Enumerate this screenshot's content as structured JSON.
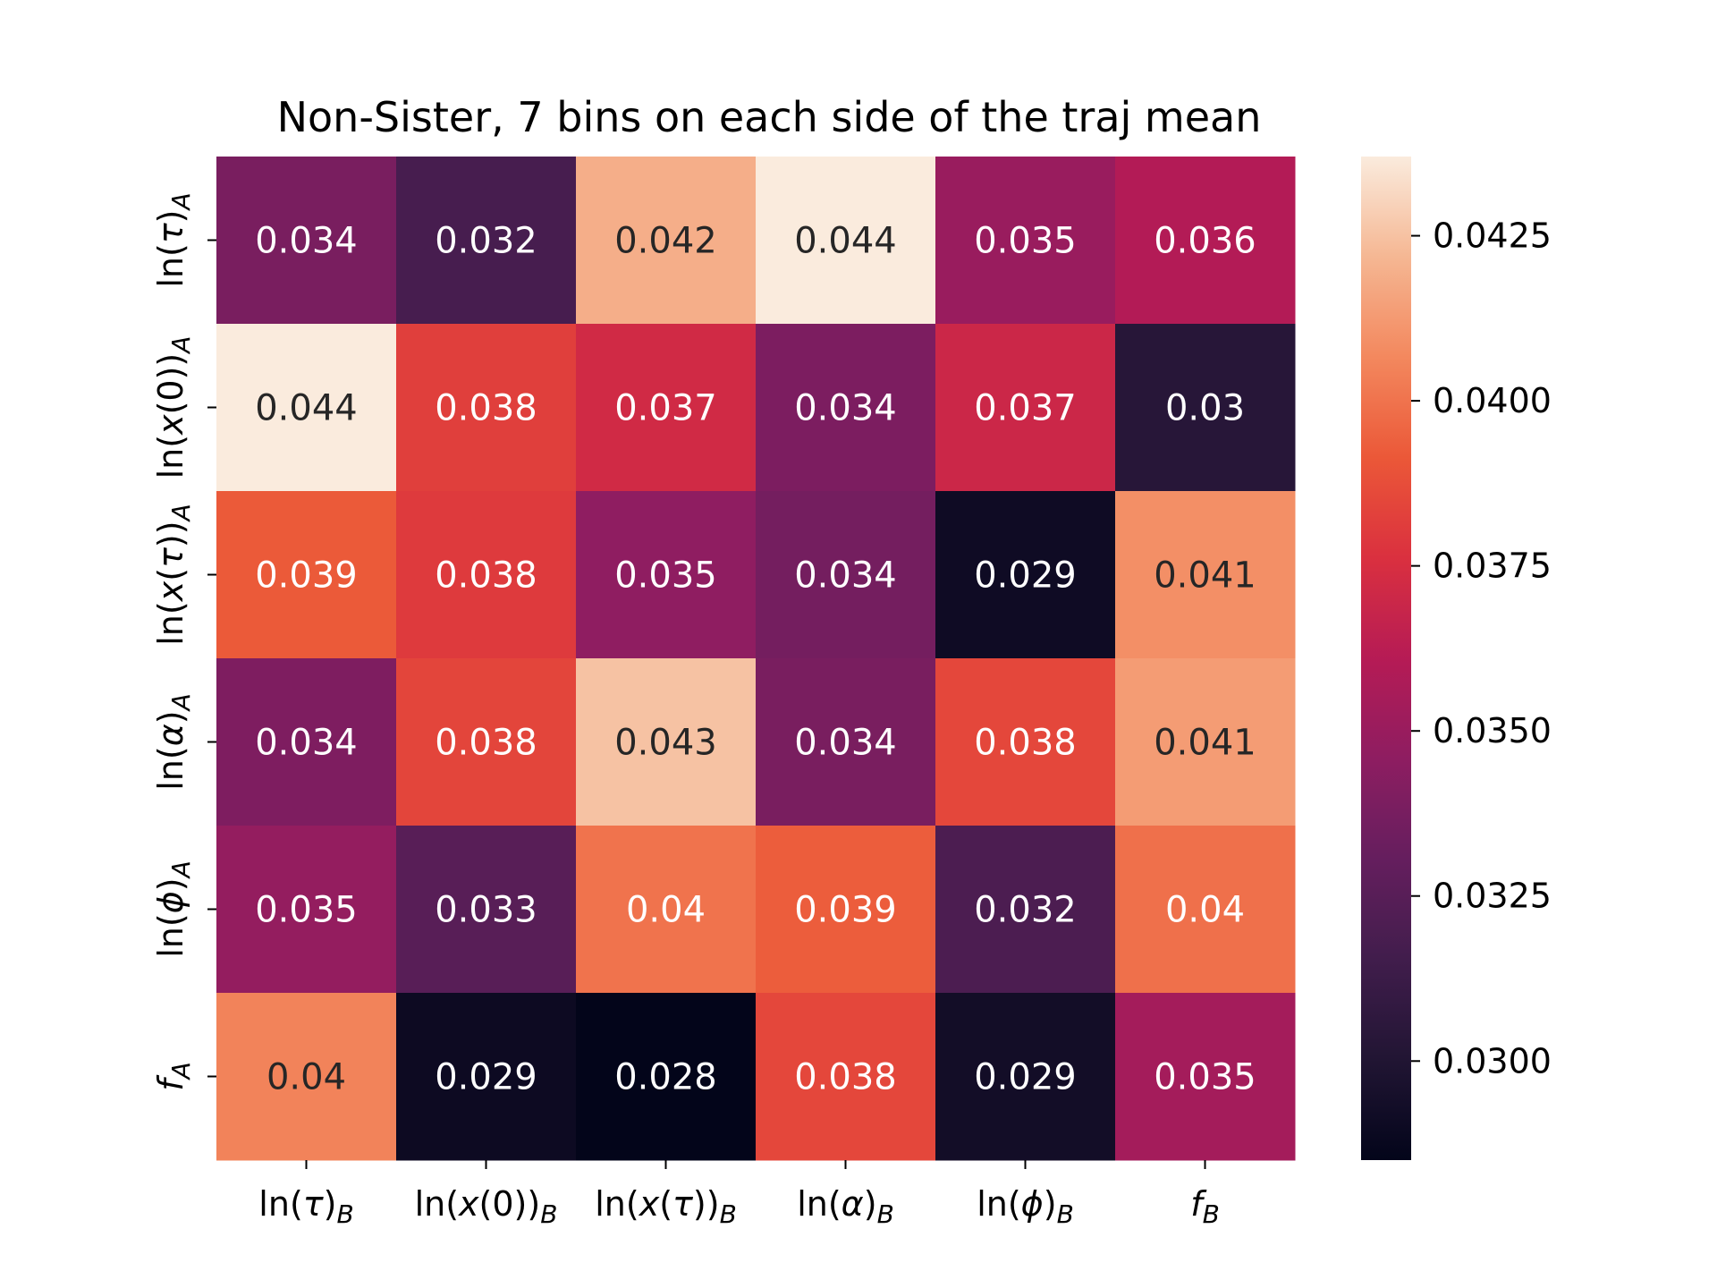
{
  "chart_data": {
    "type": "heatmap",
    "title": "Non-Sister, 7 bins on each side of the traj mean",
    "x_labels": [
      {
        "base": "ln(",
        "var": "τ",
        "close": ")",
        "sub": "B"
      },
      {
        "base": "ln(",
        "var": "x",
        "mid": "(0))",
        "sub": "B"
      },
      {
        "base": "ln(",
        "var": "x",
        "mid": "(",
        "var2": "τ",
        "close": "))",
        "sub": "B"
      },
      {
        "base": "ln(",
        "var": "α",
        "close": ")",
        "sub": "B"
      },
      {
        "base": "ln(",
        "var": "ϕ",
        "close": ")",
        "sub": "B"
      },
      {
        "base": "",
        "var": "f",
        "close": "",
        "sub": "B"
      }
    ],
    "y_labels": [
      {
        "base": "ln(",
        "var": "τ",
        "close": ")",
        "sub": "A"
      },
      {
        "base": "ln(",
        "var": "x",
        "mid": "(0))",
        "sub": "A"
      },
      {
        "base": "ln(",
        "var": "x",
        "mid": "(",
        "var2": "τ",
        "close": "))",
        "sub": "A"
      },
      {
        "base": "ln(",
        "var": "α",
        "close": ")",
        "sub": "A"
      },
      {
        "base": "ln(",
        "var": "ϕ",
        "close": ")",
        "sub": "A"
      },
      {
        "base": "",
        "var": "f",
        "close": "",
        "sub": "A"
      }
    ],
    "values": [
      [
        0.0338,
        0.0318,
        0.0419,
        0.0437,
        0.035,
        0.036
      ],
      [
        0.0437,
        0.0382,
        0.0372,
        0.0339,
        0.037,
        0.0303
      ],
      [
        0.0392,
        0.038,
        0.0346,
        0.0336,
        0.0291,
        0.0409
      ],
      [
        0.034,
        0.0384,
        0.0425,
        0.0338,
        0.0385,
        0.0413
      ],
      [
        0.0348,
        0.0325,
        0.04,
        0.0393,
        0.032,
        0.0399
      ],
      [
        0.0405,
        0.029,
        0.0285,
        0.0385,
        0.0293,
        0.0354
      ]
    ],
    "annotations": [
      [
        "0.034",
        "0.032",
        "0.042",
        "0.044",
        "0.035",
        "0.036"
      ],
      [
        "0.044",
        "0.038",
        "0.037",
        "0.034",
        "0.037",
        "0.03"
      ],
      [
        "0.039",
        "0.038",
        "0.035",
        "0.034",
        "0.029",
        "0.041"
      ],
      [
        "0.034",
        "0.038",
        "0.043",
        "0.034",
        "0.038",
        "0.041"
      ],
      [
        "0.035",
        "0.033",
        "0.04",
        "0.039",
        "0.032",
        "0.04"
      ],
      [
        "0.04",
        "0.029",
        "0.028",
        "0.038",
        "0.029",
        "0.035"
      ]
    ],
    "colorbar": {
      "vmin": 0.0285,
      "vmax": 0.0437,
      "ticks": [
        0.03,
        0.0325,
        0.035,
        0.0375,
        0.04,
        0.0425
      ],
      "tick_labels": [
        "0.0300",
        "0.0325",
        "0.0350",
        "0.0375",
        "0.0400",
        "0.0425"
      ],
      "colormap": "rocket"
    },
    "grid": false
  }
}
